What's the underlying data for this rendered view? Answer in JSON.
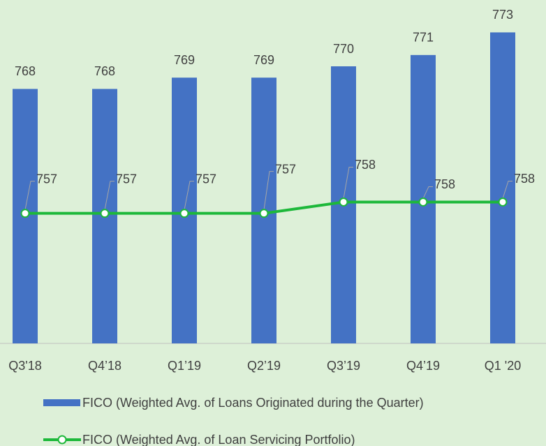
{
  "chart_data": {
    "type": "bar",
    "categories": [
      "Q3'18",
      "Q4’18",
      "Q1’19",
      "Q2’19",
      "Q3’19",
      "Q4’19",
      "Q1 '20"
    ],
    "series": [
      {
        "name": "FICO (Weighted Avg. of Loans Originated during the Quarter)",
        "type": "bar",
        "color": "#4472c4",
        "values": [
          768,
          768,
          769,
          769,
          770,
          771,
          773
        ]
      },
      {
        "name": "FICO (Weighted Avg. of Loan Servicing Portfolio)",
        "type": "line",
        "color": "#1db83a",
        "values": [
          757,
          757,
          757,
          757,
          758,
          758,
          758
        ]
      }
    ],
    "ylim": [
      745.5,
      775
    ],
    "legend": "bottom"
  }
}
